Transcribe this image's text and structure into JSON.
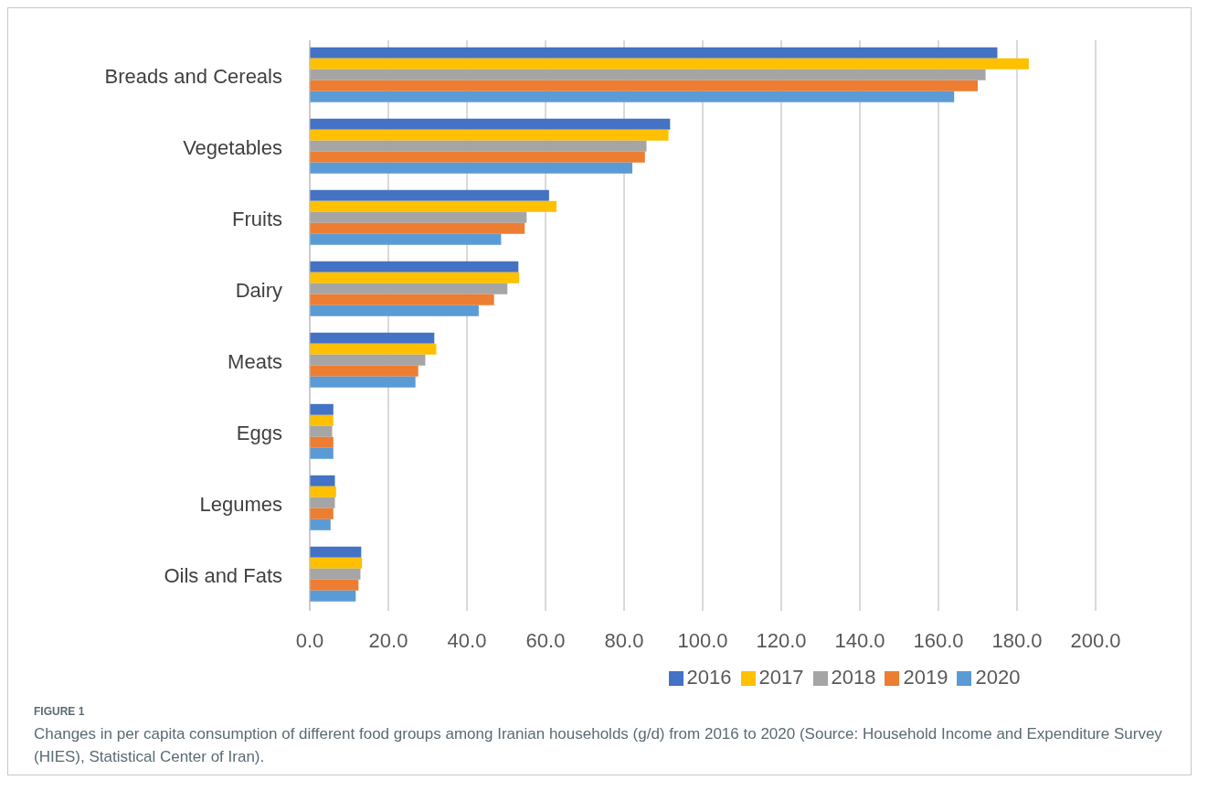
{
  "chart_data": {
    "type": "bar",
    "orientation": "horizontal",
    "categories": [
      "Breads and Cereals",
      "Vegetables",
      "Fruits",
      "Dairy",
      "Meats",
      "Eggs",
      "Legumes",
      "Oils and Fats"
    ],
    "series": [
      {
        "name": "2016",
        "color": "#4472c4",
        "values": [
          175,
          91.7,
          60.9,
          53.1,
          31.7,
          6.0,
          6.4,
          13.1
        ]
      },
      {
        "name": "2017",
        "color": "#ffc000",
        "values": [
          183,
          91.3,
          62.8,
          53.3,
          32.2,
          6.0,
          6.7,
          13.3
        ]
      },
      {
        "name": "2018",
        "color": "#a5a5a5",
        "values": [
          172,
          85.7,
          55.2,
          50.3,
          29.4,
          5.7,
          6.4,
          12.9
        ]
      },
      {
        "name": "2019",
        "color": "#ed7d31",
        "values": [
          170,
          85.3,
          54.7,
          46.9,
          27.6,
          6.0,
          6.0,
          12.4
        ]
      },
      {
        "name": "2020",
        "color": "#5b9bd5",
        "values": [
          164,
          82.1,
          48.7,
          43.0,
          26.9,
          6.0,
          5.3,
          11.7
        ]
      }
    ],
    "xlim": [
      0,
      200
    ],
    "xticks": [
      {
        "value": 0,
        "label": "0.0"
      },
      {
        "value": 20,
        "label": "20.0"
      },
      {
        "value": 40,
        "label": "40.0"
      },
      {
        "value": 60,
        "label": "60.0"
      },
      {
        "value": 80,
        "label": "80.0"
      },
      {
        "value": 100,
        "label": "100.0"
      },
      {
        "value": 120,
        "label": "120.0"
      },
      {
        "value": 140,
        "label": "140.0"
      },
      {
        "value": 160,
        "label": "160.0"
      },
      {
        "value": 180,
        "label": "180.0"
      },
      {
        "value": 200,
        "label": "200.0"
      }
    ],
    "grid": "x",
    "legend": "bottom",
    "annotations": [
      "FIGURE 1",
      "Changes in per capita consumption of different food groups among Iranian households (g/d) from 2016 to 2020 (Source: Household Income and Expenditure Survey (HIES), Statistical Center of Iran)."
    ]
  }
}
